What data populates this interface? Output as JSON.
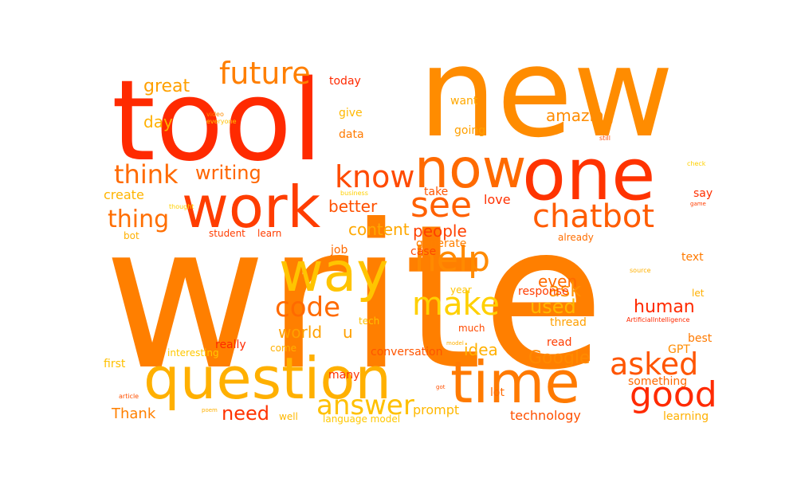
{
  "words": [
    {
      "text": "write",
      "color": "#ff7f00"
    },
    {
      "text": "tool",
      "color": "#ff2a00"
    },
    {
      "text": "new",
      "color": "#ff8c00"
    },
    {
      "text": "one",
      "color": "#ff3300"
    },
    {
      "text": "now",
      "color": "#ff6a00"
    },
    {
      "text": "work",
      "color": "#ff3d00"
    },
    {
      "text": "question",
      "color": "#ffb000"
    },
    {
      "text": "time",
      "color": "#ff7a00"
    },
    {
      "text": "way",
      "color": "#ffc400"
    },
    {
      "text": "chatbot",
      "color": "#ff5c00"
    },
    {
      "text": "future",
      "color": "#ff7f00"
    },
    {
      "text": "know",
      "color": "#ff4a00"
    },
    {
      "text": "see",
      "color": "#ff6000"
    },
    {
      "text": "help",
      "color": "#ff8a00"
    },
    {
      "text": "make",
      "color": "#ffd000"
    },
    {
      "text": "good",
      "color": "#ff2a00"
    },
    {
      "text": "asked",
      "color": "#ff5500"
    },
    {
      "text": "answer",
      "color": "#ffc000"
    },
    {
      "text": "code",
      "color": "#ff6a00"
    },
    {
      "text": "think",
      "color": "#ff6a00"
    },
    {
      "text": "writing",
      "color": "#ff6500"
    },
    {
      "text": "thing",
      "color": "#ff6e00"
    },
    {
      "text": "great",
      "color": "#ffa000"
    },
    {
      "text": "human",
      "color": "#ff2a00"
    },
    {
      "text": "Google",
      "color": "#ff8a00"
    },
    {
      "text": "need",
      "color": "#ff3300"
    },
    {
      "text": "used",
      "color": "#ffb800"
    },
    {
      "text": "ask",
      "color": "#ff9000"
    },
    {
      "text": "even",
      "color": "#ff6a00"
    },
    {
      "text": "people",
      "color": "#ff4000"
    },
    {
      "text": "amazing",
      "color": "#ff8c00"
    },
    {
      "text": "idea",
      "color": "#ffb000"
    },
    {
      "text": "content",
      "color": "#ffa800"
    },
    {
      "text": "better",
      "color": "#ff5000"
    },
    {
      "text": "world",
      "color": "#ffa000"
    },
    {
      "text": "u",
      "color": "#ffa000"
    },
    {
      "text": "create",
      "color": "#ffb400"
    },
    {
      "text": "day",
      "color": "#ffb000"
    },
    {
      "text": "love",
      "color": "#ff3000"
    },
    {
      "text": "prompt",
      "color": "#ffb800"
    },
    {
      "text": "Thank",
      "color": "#ff8000"
    },
    {
      "text": "technology",
      "color": "#ff5000"
    },
    {
      "text": "lot",
      "color": "#ff6a00"
    },
    {
      "text": "going",
      "color": "#ffa000"
    },
    {
      "text": "want",
      "color": "#ffa800"
    },
    {
      "text": "today",
      "color": "#ff2a00"
    },
    {
      "text": "give",
      "color": "#ffb800"
    },
    {
      "text": "data",
      "color": "#ff7a00"
    },
    {
      "text": "take",
      "color": "#ff5500"
    },
    {
      "text": "text",
      "color": "#ff7a00"
    },
    {
      "text": "say",
      "color": "#ff3000"
    },
    {
      "text": "response",
      "color": "#ff3d00"
    },
    {
      "text": "generate",
      "color": "#ff8000"
    },
    {
      "text": "case",
      "color": "#ff4a00"
    },
    {
      "text": "job",
      "color": "#ff6a00"
    },
    {
      "text": "student",
      "color": "#ff3d00"
    },
    {
      "text": "learn",
      "color": "#ff3d00"
    },
    {
      "text": "bot",
      "color": "#ffb000"
    },
    {
      "text": "already",
      "color": "#ff6e00"
    },
    {
      "text": "let",
      "color": "#ffb000"
    },
    {
      "text": "year",
      "color": "#ffc400"
    },
    {
      "text": "tech",
      "color": "#ffc000"
    },
    {
      "text": "thread",
      "color": "#ffa000"
    },
    {
      "text": "much",
      "color": "#ff4a00"
    },
    {
      "text": "read",
      "color": "#ff3d00"
    },
    {
      "text": "really",
      "color": "#ff2a00"
    },
    {
      "text": "come",
      "color": "#ffb000"
    },
    {
      "text": "interesting",
      "color": "#ffc800"
    },
    {
      "text": "conversation",
      "color": "#ff5500"
    },
    {
      "text": "first",
      "color": "#ffc000"
    },
    {
      "text": "many",
      "color": "#ff3000"
    },
    {
      "text": "well",
      "color": "#ffb800"
    },
    {
      "text": "language model",
      "color": "#ffc800"
    },
    {
      "text": "best",
      "color": "#ff7a00"
    },
    {
      "text": "GPT",
      "color": "#ff8c00"
    },
    {
      "text": "something",
      "color": "#ff6a00"
    },
    {
      "text": "learning",
      "color": "#ffb000"
    },
    {
      "text": "ArtificialIntelligence",
      "color": "#ff2a00"
    },
    {
      "text": "source",
      "color": "#ffb000"
    },
    {
      "text": "video",
      "color": "#ff8c00"
    },
    {
      "text": "everyone",
      "color": "#ffc000"
    },
    {
      "text": "still",
      "color": "#ff4a00"
    },
    {
      "text": "check",
      "color": "#ffd000"
    },
    {
      "text": "business",
      "color": "#ffd000"
    },
    {
      "text": "thought",
      "color": "#ffd000"
    },
    {
      "text": "game",
      "color": "#ff3d00"
    },
    {
      "text": "model",
      "color": "#ffb000"
    },
    {
      "text": "got",
      "color": "#ff5000"
    },
    {
      "text": "article",
      "color": "#ff5000"
    },
    {
      "text": "poem",
      "color": "#ffb000"
    }
  ]
}
